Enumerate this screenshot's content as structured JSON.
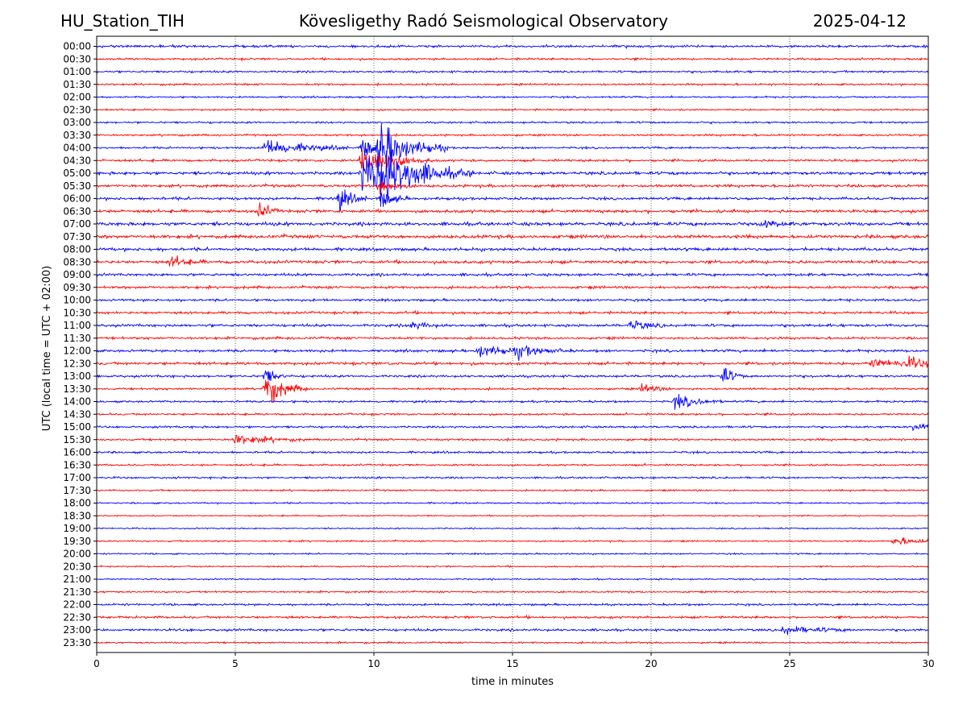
{
  "header": {
    "station": "HU_Station_TIH",
    "observatory": "Kövesligethy Radó Seismological Observatory",
    "date": "2025-04-12"
  },
  "chart_data": {
    "type": "line",
    "xlabel": "time in minutes",
    "ylabel": "UTC (local time = UTC + 02:00)",
    "xlim": [
      0,
      30
    ],
    "xticks": [
      "0",
      "5",
      "10",
      "15",
      "20",
      "25",
      "30"
    ],
    "grid": "vertical dotted at x-ticks",
    "colors": [
      "#0000ff",
      "#ff0000"
    ],
    "rows": [
      "00:00",
      "00:30",
      "01:00",
      "01:30",
      "02:00",
      "02:30",
      "03:00",
      "03:30",
      "04:00",
      "04:30",
      "05:00",
      "05:30",
      "06:00",
      "06:30",
      "07:00",
      "07:30",
      "08:00",
      "08:30",
      "09:00",
      "09:30",
      "10:00",
      "10:30",
      "11:00",
      "11:30",
      "12:00",
      "12:30",
      "13:00",
      "13:30",
      "14:00",
      "14:30",
      "15:00",
      "15:30",
      "16:00",
      "16:30",
      "17:00",
      "17:30",
      "18:00",
      "18:30",
      "19:00",
      "19:30",
      "20:00",
      "20:30",
      "21:00",
      "21:30",
      "22:00",
      "22:30",
      "23:00",
      "23:30"
    ],
    "noise": [
      0.35,
      0.3,
      0.3,
      0.28,
      0.25,
      0.25,
      0.28,
      0.28,
      0.3,
      0.35,
      0.45,
      0.4,
      0.4,
      0.45,
      0.5,
      0.5,
      0.45,
      0.45,
      0.4,
      0.38,
      0.35,
      0.38,
      0.4,
      0.35,
      0.38,
      0.42,
      0.35,
      0.3,
      0.3,
      0.3,
      0.3,
      0.3,
      0.3,
      0.28,
      0.28,
      0.25,
      0.22,
      0.2,
      0.2,
      0.22,
      0.22,
      0.22,
      0.22,
      0.25,
      0.3,
      0.35,
      0.35,
      0.25
    ],
    "events": [
      {
        "row": "04:00",
        "x": 6.1,
        "amp": 3.0,
        "dur": 1.2
      },
      {
        "row": "04:00",
        "x": 9.6,
        "amp": 3.5,
        "dur": 0.6
      },
      {
        "row": "04:00",
        "x": 10.2,
        "amp": 8.0,
        "dur": 1.0
      },
      {
        "row": "04:30",
        "x": 9.6,
        "amp": 4.0,
        "dur": 1.0
      },
      {
        "row": "04:30",
        "x": 10.2,
        "amp": 3.0,
        "dur": 0.5
      },
      {
        "row": "05:00",
        "x": 9.6,
        "amp": 7.0,
        "dur": 1.0
      },
      {
        "row": "05:00",
        "x": 10.1,
        "amp": 9.0,
        "dur": 1.4
      },
      {
        "row": "05:30",
        "x": 10.2,
        "amp": 2.5,
        "dur": 0.5
      },
      {
        "row": "06:00",
        "x": 8.75,
        "amp": 4.0,
        "dur": 0.4
      },
      {
        "row": "06:00",
        "x": 10.3,
        "amp": 3.0,
        "dur": 0.4
      },
      {
        "row": "06:30",
        "x": 5.9,
        "amp": 3.0,
        "dur": 0.3
      },
      {
        "row": "07:00",
        "x": 24.0,
        "amp": 1.5,
        "dur": 0.5
      },
      {
        "row": "08:30",
        "x": 2.7,
        "amp": 2.0,
        "dur": 0.5
      },
      {
        "row": "11:00",
        "x": 19.3,
        "amp": 2.0,
        "dur": 0.5
      },
      {
        "row": "11:00",
        "x": 11.3,
        "amp": 1.5,
        "dur": 0.5
      },
      {
        "row": "12:00",
        "x": 13.8,
        "amp": 2.2,
        "dur": 0.8
      },
      {
        "row": "12:00",
        "x": 15.2,
        "amp": 2.0,
        "dur": 0.8
      },
      {
        "row": "12:30",
        "x": 28.0,
        "amp": 1.5,
        "dur": 1.0
      },
      {
        "row": "12:30",
        "x": 29.3,
        "amp": 1.5,
        "dur": 0.8
      },
      {
        "row": "13:00",
        "x": 22.6,
        "amp": 3.5,
        "dur": 0.3
      },
      {
        "row": "13:00",
        "x": 6.1,
        "amp": 3.0,
        "dur": 0.3
      },
      {
        "row": "13:30",
        "x": 6.1,
        "amp": 6.0,
        "dur": 0.6
      },
      {
        "row": "13:30",
        "x": 19.7,
        "amp": 2.0,
        "dur": 0.4
      },
      {
        "row": "14:00",
        "x": 20.9,
        "amp": 2.5,
        "dur": 0.7
      },
      {
        "row": "15:00",
        "x": 29.5,
        "amp": 1.5,
        "dur": 0.5
      },
      {
        "row": "15:30",
        "x": 5.0,
        "amp": 2.0,
        "dur": 1.0
      },
      {
        "row": "19:30",
        "x": 28.8,
        "amp": 1.5,
        "dur": 0.8
      },
      {
        "row": "23:00",
        "x": 24.8,
        "amp": 1.5,
        "dur": 1.0
      }
    ]
  }
}
